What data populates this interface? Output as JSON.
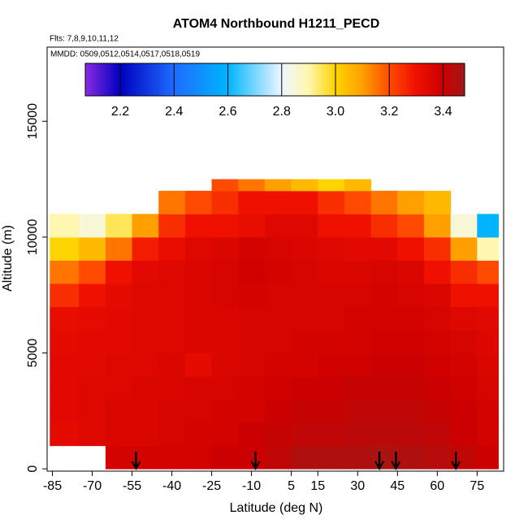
{
  "chart_data": {
    "type": "heatmap",
    "title": "ATOM4 Northbound H1211_PECD",
    "subtitle": "Flts: 7,8,9,10,11,12",
    "annotation": "MMDD: 0509,0512,0514,0517,0518,0519",
    "x_label": "Latitude (deg N)",
    "y_label": "Altitude (m)",
    "xlim": [
      -87,
      85
    ],
    "ylim": [
      -100,
      18200
    ],
    "xticks": [
      -85,
      -70,
      -55,
      -40,
      -25,
      -10,
      5,
      15,
      30,
      45,
      60,
      75
    ],
    "yticks": [
      0,
      5000,
      10000,
      15000
    ],
    "x_edges": [
      -86,
      -75,
      -65,
      -55,
      -45,
      -35,
      -25,
      -15,
      -5,
      5,
      15,
      25,
      35,
      45,
      55,
      65,
      75,
      83
    ],
    "y_edges": [
      0,
      1000,
      2000,
      3000,
      4000,
      5000,
      6000,
      7000,
      8000,
      9000,
      10000,
      11000,
      12000,
      12500
    ],
    "z": [
      [
        null,
        null,
        3.38,
        3.38,
        3.38,
        3.38,
        3.4,
        3.4,
        3.42,
        3.45,
        3.45,
        3.45,
        3.46,
        3.45,
        3.44,
        3.42,
        3.4
      ],
      [
        3.33,
        3.35,
        3.36,
        3.36,
        3.37,
        3.38,
        3.38,
        3.4,
        3.41,
        3.42,
        3.42,
        3.43,
        3.43,
        3.43,
        3.42,
        3.4,
        3.38
      ],
      [
        3.34,
        3.35,
        3.36,
        3.36,
        3.37,
        3.37,
        3.38,
        3.38,
        3.4,
        3.41,
        3.41,
        3.42,
        3.42,
        3.42,
        3.41,
        3.4,
        3.38
      ],
      [
        3.34,
        3.35,
        3.35,
        3.36,
        3.36,
        3.37,
        3.37,
        3.38,
        3.39,
        3.4,
        3.4,
        3.41,
        3.41,
        3.41,
        3.4,
        3.39,
        3.37
      ],
      [
        3.34,
        3.34,
        3.35,
        3.35,
        3.36,
        3.33,
        3.36,
        3.37,
        3.38,
        3.38,
        3.39,
        3.39,
        3.4,
        3.4,
        3.39,
        3.38,
        3.36
      ],
      [
        3.33,
        3.34,
        3.34,
        3.35,
        3.35,
        3.36,
        3.36,
        3.37,
        3.37,
        3.38,
        3.38,
        3.38,
        3.39,
        3.39,
        3.38,
        3.37,
        3.35
      ],
      [
        3.32,
        3.33,
        3.34,
        3.35,
        3.35,
        3.36,
        3.36,
        3.37,
        3.37,
        3.37,
        3.37,
        3.38,
        3.38,
        3.38,
        3.37,
        3.35,
        3.34
      ],
      [
        3.25,
        3.3,
        3.33,
        3.35,
        3.35,
        3.36,
        3.37,
        3.38,
        3.37,
        3.37,
        3.37,
        3.37,
        3.38,
        3.37,
        3.36,
        3.3,
        3.3
      ],
      [
        3.15,
        3.2,
        3.3,
        3.34,
        3.35,
        3.36,
        3.37,
        3.39,
        3.38,
        3.37,
        3.36,
        3.36,
        3.37,
        3.36,
        3.3,
        3.25,
        3.2
      ],
      [
        3.0,
        3.05,
        3.15,
        3.28,
        3.32,
        3.35,
        3.36,
        3.38,
        3.37,
        3.36,
        3.35,
        3.34,
        3.34,
        3.3,
        3.25,
        3.1,
        2.9
      ],
      [
        2.9,
        2.85,
        2.95,
        3.1,
        3.25,
        3.3,
        3.3,
        3.32,
        3.35,
        3.35,
        3.3,
        3.3,
        3.25,
        3.2,
        3.1,
        2.85,
        2.6
      ],
      [
        null,
        null,
        null,
        null,
        3.15,
        3.2,
        3.25,
        3.3,
        3.3,
        3.3,
        3.25,
        3.2,
        3.15,
        3.1,
        3.05,
        null,
        null
      ],
      [
        null,
        null,
        null,
        null,
        null,
        null,
        3.2,
        3.15,
        3.1,
        3.05,
        3.0,
        3.05,
        null,
        null,
        null,
        null,
        null
      ]
    ],
    "colorbar": {
      "lim": [
        2.07,
        3.48
      ],
      "ticks": [
        2.2,
        2.4,
        2.6,
        2.8,
        {
          "value": 3,
          "label": "3.0"
        },
        3.2,
        3.4
      ],
      "colorscale": [
        {
          "value": 2.07,
          "color": "#8a2be2"
        },
        {
          "value": 2.2,
          "color": "#0000c0"
        },
        {
          "value": 2.4,
          "color": "#1e6cff"
        },
        {
          "value": 2.6,
          "color": "#00b4ff"
        },
        {
          "value": 2.8,
          "color": "#eef6ff"
        },
        {
          "value": 2.9,
          "color": "#fff6b0"
        },
        {
          "value": 3.0,
          "color": "#ffd400"
        },
        {
          "value": 3.1,
          "color": "#ffa000"
        },
        {
          "value": 3.2,
          "color": "#ff4a00"
        },
        {
          "value": 3.3,
          "color": "#f01000"
        },
        {
          "value": 3.4,
          "color": "#cc0000"
        },
        {
          "value": 3.48,
          "color": "#a01818"
        }
      ]
    },
    "arrows": [
      -53.5,
      -8.5,
      38.2,
      44.4,
      67
    ]
  }
}
